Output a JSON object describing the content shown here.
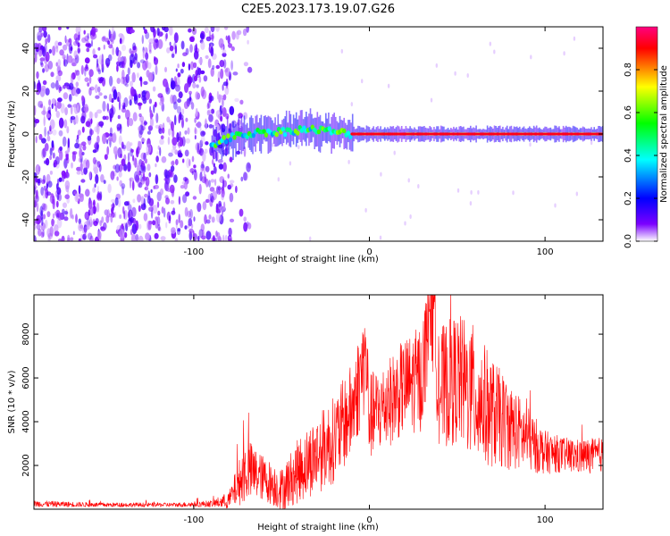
{
  "title": "C2E5.2023.173.19.07.G26",
  "chart_data": [
    {
      "type": "heatmap",
      "panel": "spectrogram",
      "xlabel": "Height of straight line (km)",
      "ylabel": "Frequency (Hz)",
      "xlim": [
        -191,
        133
      ],
      "ylim": [
        -50,
        50
      ],
      "x_ticks": [
        -100,
        0,
        100
      ],
      "y_ticks": [
        -40,
        -20,
        0,
        20,
        40
      ],
      "colorbar": {
        "label": "Normalized spectral amplitude",
        "range": [
          0.0,
          1.0
        ],
        "ticks": [
          0.0,
          0.2,
          0.4,
          0.6,
          0.8
        ],
        "colormap": [
          "#ffffff",
          "#7b00ff",
          "#0000ff",
          "#00ffff",
          "#00ff00",
          "#ffff00",
          "#ff0000",
          "#ff0080"
        ]
      },
      "noise_region_x": [
        -191,
        -78
      ],
      "signal_track": {
        "x": [
          -90,
          -80,
          -70,
          -60,
          -50,
          -40,
          -30,
          -20,
          -10,
          0,
          20,
          40,
          60,
          80,
          100,
          120,
          133
        ],
        "frequency": [
          -5,
          -2,
          0,
          1,
          1,
          2,
          2,
          1,
          0,
          0,
          0,
          0,
          0,
          0,
          0,
          0,
          0
        ]
      },
      "grid": false
    },
    {
      "type": "line",
      "panel": "snr",
      "xlabel": "Height of straight line (km)",
      "ylabel": "SNR (10 * v/v)",
      "xlim": [
        -191,
        133
      ],
      "ylim": [
        0,
        9800
      ],
      "x_ticks": [
        -100,
        0,
        100
      ],
      "y_ticks": [
        2000,
        4000,
        6000,
        8000
      ],
      "series": [
        {
          "color": "#ff0000",
          "x": [
            -191,
            -170,
            -150,
            -130,
            -110,
            -90,
            -80,
            -70,
            -60,
            -50,
            -40,
            -30,
            -20,
            -10,
            -2,
            0,
            10,
            20,
            30,
            35,
            40,
            50,
            60,
            70,
            80,
            90,
            100,
            110,
            120,
            133
          ],
          "y": [
            250,
            220,
            200,
            200,
            200,
            250,
            400,
            1800,
            1400,
            900,
            1800,
            2500,
            3200,
            4500,
            7000,
            4200,
            4800,
            5600,
            6000,
            9600,
            5500,
            6000,
            5200,
            4400,
            3800,
            3200,
            2600,
            2500,
            2400,
            2500
          ],
          "spread": [
            150,
            120,
            100,
            100,
            100,
            150,
            400,
            1500,
            1000,
            1000,
            1500,
            1800,
            2000,
            2200,
            2500,
            2000,
            2000,
            2200,
            2500,
            2500,
            2800,
            3000,
            3200,
            2500,
            2000,
            1500,
            1000,
            800,
            800,
            800
          ]
        }
      ],
      "grid": false
    }
  ]
}
